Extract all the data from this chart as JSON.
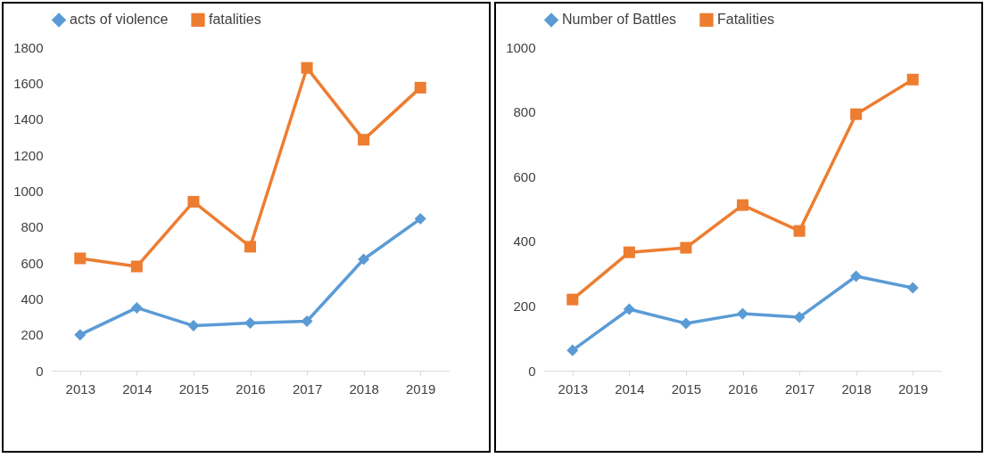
{
  "chart_data": [
    {
      "type": "line",
      "categories": [
        "2013",
        "2014",
        "2015",
        "2016",
        "2017",
        "2018",
        "2019"
      ],
      "ylim": [
        0,
        1800
      ],
      "yticks": [
        0,
        200,
        400,
        600,
        800,
        1000,
        1200,
        1400,
        1600,
        1800
      ],
      "grid": false,
      "legend": "top",
      "series": [
        {
          "name": "acts of violence",
          "color": "#5b9bd5",
          "marker": "diamond",
          "values": [
            200,
            350,
            250,
            265,
            275,
            620,
            845
          ]
        },
        {
          "name": "fatalities",
          "color": "#ed7d31",
          "marker": "square",
          "values": [
            625,
            580,
            940,
            690,
            1685,
            1285,
            1575
          ]
        }
      ]
    },
    {
      "type": "line",
      "categories": [
        "2013",
        "2014",
        "2015",
        "2016",
        "2017",
        "2018",
        "2019"
      ],
      "ylim": [
        0,
        1000
      ],
      "yticks": [
        0,
        200,
        400,
        600,
        800,
        1000
      ],
      "grid": false,
      "legend": "top",
      "series": [
        {
          "name": "Number of Battles",
          "color": "#5b9bd5",
          "marker": "diamond",
          "values": [
            63,
            190,
            146,
            176,
            165,
            292,
            256
          ]
        },
        {
          "name": "Fatalities",
          "color": "#ed7d31",
          "marker": "square",
          "values": [
            220,
            366,
            380,
            512,
            432,
            793,
            900
          ]
        }
      ]
    }
  ]
}
